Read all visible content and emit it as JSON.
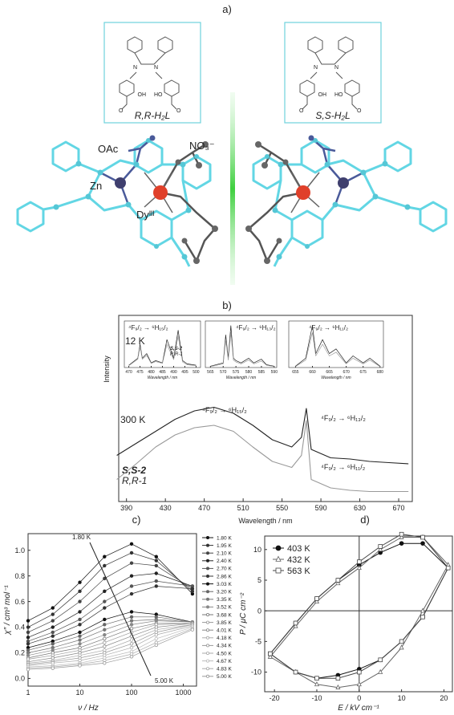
{
  "structures": {
    "label": "a)",
    "ligands": [
      {
        "name": "R,R-H₂L",
        "atoms": [
          "N",
          "N",
          "OH",
          "HO",
          "O",
          "O"
        ]
      },
      {
        "name": "S,S-H₂L",
        "atoms": [
          "N",
          "N",
          "OH",
          "HO",
          "O",
          "O"
        ]
      }
    ],
    "atom_labels": [
      "OAc",
      "NO₃⁻",
      "Zn",
      "Dyᴵᴵᴵ"
    ]
  },
  "chart_data": [
    {
      "type": "line",
      "label": "b)",
      "xlabel": "Wavelength / nm",
      "ylabel": "Intensity",
      "x": [
        380,
        400,
        420,
        440,
        460,
        480,
        500,
        520,
        540,
        560,
        570,
        575,
        580,
        600,
        620,
        640,
        660,
        680
      ],
      "series": [
        {
          "name": "S,S-2",
          "color": "#222222",
          "values": [
            3.5,
            4.5,
            5.5,
            6.5,
            7.2,
            7.5,
            7,
            6,
            4.8,
            4.2,
            5,
            7.4,
            4,
            3.3,
            3.2,
            3.0,
            2.9,
            2.8
          ]
        },
        {
          "name": "R,R-1",
          "color": "#999999",
          "values": [
            1.5,
            2.8,
            4.2,
            5.2,
            5.8,
            6.0,
            5.5,
            4.2,
            3,
            2.5,
            3.5,
            6.4,
            1.5,
            0.8,
            0.6,
            0.5,
            0.5,
            0.5
          ]
        }
      ],
      "xlim": [
        382,
        684
      ],
      "xticks": [
        390,
        430,
        470,
        510,
        550,
        590,
        630,
        670
      ],
      "ylim": [
        0,
        10
      ],
      "annotations": [
        "12 K",
        "300 K",
        "⁴F₉/₂ → ⁶H₁₅/₂",
        "⁴F₉/₂ → ⁶H₁₃/₂",
        "⁴F₉/₂ → ⁶H₁₁/₂"
      ],
      "insets": [
        {
          "title": "⁴F₉/₂ → ⁶H₁₅/₂",
          "xlabel": "Wavelength / nm",
          "x": [
            470,
            474,
            475,
            476,
            478,
            480,
            482,
            485,
            487,
            490,
            492,
            494,
            496,
            500
          ],
          "series": [
            {
              "name": "S,S-2",
              "color": "#222222",
              "values": [
                0.5,
                2,
                5,
                2,
                3,
                1,
                1.5,
                1,
                6,
                2,
                8,
                1.5,
                0.8,
                0.5
              ]
            },
            {
              "name": "R,R-1",
              "color": "#999999",
              "values": [
                0.4,
                1.8,
                4.5,
                1.8,
                2.6,
                0.9,
                1.3,
                0.9,
                5,
                1.7,
                6.8,
                1.2,
                0.6,
                0.4
              ]
            }
          ],
          "xlim": [
            468,
            502
          ],
          "xticks": [
            470,
            475,
            480,
            485,
            490,
            495,
            500
          ],
          "ylim": [
            0,
            10
          ]
        },
        {
          "title": "⁴F₉/₂ → ⁶H₁₃/₂",
          "xlabel": "Wavelength / nm",
          "x": [
            565,
            570,
            571,
            572,
            573,
            574,
            575,
            577,
            580,
            582,
            585,
            587,
            590
          ],
          "series": [
            {
              "color": "#222222",
              "values": [
                0.3,
                1,
                7,
                2,
                9,
                2,
                1.5,
                1,
                2,
                1,
                1.8,
                0.6,
                0.3
              ]
            },
            {
              "color": "#999999",
              "values": [
                0.2,
                0.8,
                6,
                1.6,
                7.5,
                1.6,
                1.2,
                0.8,
                1.6,
                0.8,
                1.4,
                0.5,
                0.2
              ]
            }
          ],
          "xlim": [
            563,
            591
          ],
          "xticks": [
            565,
            570,
            575,
            580,
            585,
            590
          ],
          "ylim": [
            0,
            10
          ]
        },
        {
          "title": "⁴F₉/₂ → ⁶H₁₁/₂",
          "xlabel": "Wavelength / nm",
          "x": [
            655,
            658,
            660,
            661,
            663,
            665,
            667,
            670,
            672,
            675,
            677,
            680
          ],
          "series": [
            {
              "color": "#222222",
              "values": [
                0.3,
                2,
                9,
                3,
                6,
                3,
                4,
                1,
                2.5,
                1,
                2,
                0.3
              ]
            },
            {
              "color": "#999999",
              "values": [
                0.2,
                1.6,
                7.5,
                2.5,
                5,
                2.5,
                3.3,
                0.8,
                2,
                0.8,
                1.6,
                0.2
              ]
            }
          ],
          "xlim": [
            653,
            681
          ],
          "xticks": [
            655,
            660,
            665,
            670,
            675,
            680
          ],
          "ylim": [
            0,
            10
          ]
        }
      ]
    },
    {
      "type": "line",
      "label": "c)",
      "xlabel": "ν / Hz",
      "ylabel": "χ″ / cm³ mol⁻¹",
      "log_x": true,
      "marker": "circle",
      "x": [
        1,
        3,
        10,
        30,
        100,
        300,
        1500
      ],
      "series": [
        {
          "name": "1.80 K",
          "color": "#111111",
          "values": [
            0.45,
            0.55,
            0.75,
            0.95,
            1.05,
            0.95,
            0.66
          ]
        },
        {
          "name": "1.95 K",
          "color": "#333333",
          "values": [
            0.4,
            0.5,
            0.68,
            0.88,
            0.98,
            0.92,
            0.68
          ]
        },
        {
          "name": "2.10 K",
          "color": "#444444",
          "values": [
            0.36,
            0.45,
            0.6,
            0.78,
            0.9,
            0.88,
            0.7
          ]
        },
        {
          "name": "2.40 K",
          "color": "#222222",
          "values": [
            0.32,
            0.4,
            0.52,
            0.68,
            0.8,
            0.82,
            0.72
          ]
        },
        {
          "name": "2.70 K",
          "color": "#555555",
          "values": [
            0.29,
            0.36,
            0.46,
            0.6,
            0.72,
            0.76,
            0.72
          ]
        },
        {
          "name": "2.86 K",
          "color": "#333333",
          "values": [
            0.27,
            0.33,
            0.42,
            0.55,
            0.66,
            0.72,
            0.7
          ]
        },
        {
          "name": "3.03 K",
          "color": "#111111",
          "values": [
            0.24,
            0.29,
            0.36,
            0.46,
            0.52,
            0.5,
            0.44
          ]
        },
        {
          "name": "3.20 K",
          "color": "#666666",
          "values": [
            0.22,
            0.27,
            0.33,
            0.42,
            0.48,
            0.48,
            0.44
          ]
        },
        {
          "name": "3.35 K",
          "color": "#777777",
          "values": [
            0.2,
            0.24,
            0.3,
            0.38,
            0.45,
            0.46,
            0.44
          ]
        },
        {
          "name": "3.52 K",
          "color": "#888888",
          "values": [
            0.18,
            0.22,
            0.27,
            0.34,
            0.42,
            0.45,
            0.44
          ]
        },
        {
          "name": "3.68 K",
          "color": "#777777",
          "values": [
            0.16,
            0.2,
            0.24,
            0.31,
            0.39,
            0.43,
            0.43
          ]
        },
        {
          "name": "3.85 K",
          "color": "#999999",
          "values": [
            0.15,
            0.18,
            0.22,
            0.28,
            0.36,
            0.42,
            0.43
          ]
        },
        {
          "name": "4.01 K",
          "color": "#888888",
          "values": [
            0.13,
            0.16,
            0.2,
            0.25,
            0.33,
            0.4,
            0.43
          ]
        },
        {
          "name": "4.18 K",
          "color": "#aaaaaa",
          "values": [
            0.12,
            0.14,
            0.18,
            0.22,
            0.3,
            0.38,
            0.42
          ]
        },
        {
          "name": "4.34 K",
          "color": "#999999",
          "values": [
            0.11,
            0.13,
            0.16,
            0.2,
            0.27,
            0.36,
            0.42
          ]
        },
        {
          "name": "4.50 K",
          "color": "#aaaaaa",
          "values": [
            0.1,
            0.12,
            0.14,
            0.18,
            0.24,
            0.34,
            0.41
          ]
        },
        {
          "name": "4.67 K",
          "color": "#bbbbbb",
          "values": [
            0.09,
            0.1,
            0.12,
            0.16,
            0.21,
            0.31,
            0.4
          ]
        },
        {
          "name": "4.83 K",
          "color": "#aaaaaa",
          "values": [
            0.08,
            0.09,
            0.11,
            0.14,
            0.19,
            0.28,
            0.39
          ]
        },
        {
          "name": "5.00 K",
          "color": "#999999",
          "values": [
            0.07,
            0.08,
            0.1,
            0.12,
            0.17,
            0.26,
            0.38
          ]
        }
      ],
      "xlim": [
        1,
        1800
      ],
      "xticks": [
        1,
        10,
        100,
        1000
      ],
      "ylim": [
        -0.06,
        1.13
      ],
      "yticks": [
        {
          "value": 0,
          "label": "0.0"
        },
        0.2,
        0.4,
        0.6,
        0.8,
        {
          "value": 1,
          "label": "1.0"
        }
      ],
      "annotations": [
        "1.80 K",
        "5.00 K"
      ]
    },
    {
      "type": "line",
      "label": "d)",
      "xlabel": "E / kV cm⁻¹",
      "ylabel": "P / μC cm⁻²",
      "x": [
        -21,
        -15,
        -10,
        -5,
        0,
        5,
        10,
        15,
        21,
        15,
        10,
        5,
        0,
        -5,
        -10,
        -15,
        -21
      ],
      "series": [
        {
          "name": "403 K",
          "color": "#111111",
          "marker": "circle",
          "values": [
            -7,
            -2,
            2,
            5,
            7.5,
            9.5,
            11,
            11,
            7,
            -1,
            -5,
            -8,
            -9.5,
            -10.5,
            -11,
            -10,
            -7
          ]
        },
        {
          "name": "432 K",
          "color": "#666666",
          "marker": "triangle",
          "values": [
            -7.5,
            -2.5,
            1.5,
            4.5,
            7,
            10,
            12,
            12,
            7.5,
            0,
            -6,
            -10,
            -12,
            -12.5,
            -12,
            -10,
            -7.5
          ]
        },
        {
          "name": "563 K",
          "color": "#444444",
          "marker": "square",
          "values": [
            -7,
            -2,
            2,
            5,
            8,
            10.5,
            12.5,
            12,
            7,
            -1,
            -5,
            -8,
            -10,
            -11,
            -11,
            -10,
            -7
          ]
        }
      ],
      "xlim": [
        -22.3,
        22
      ],
      "xticks": [
        -20,
        -10,
        0,
        10,
        20
      ],
      "ylim": [
        -13.2,
        12.2
      ],
      "yticks": [
        -10,
        -5,
        0,
        5,
        10
      ]
    }
  ]
}
